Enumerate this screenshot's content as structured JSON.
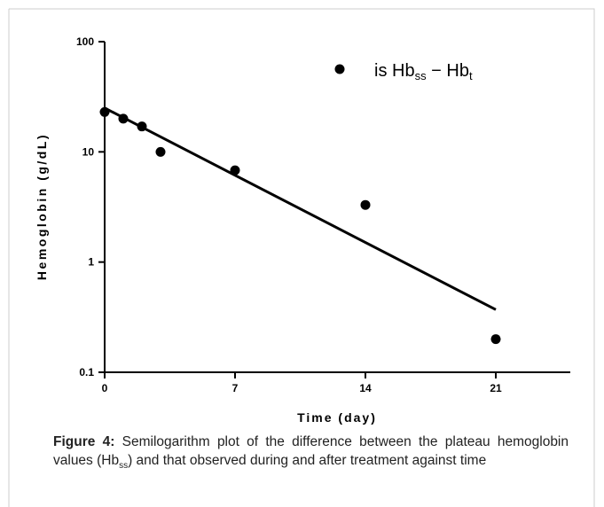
{
  "chart_data": {
    "type": "scatter",
    "ylabel": "Hemoglobin (g/dL)",
    "xlabel": "Time (day)",
    "xlim": [
      0,
      25
    ],
    "xticks": [
      0,
      7,
      14,
      21
    ],
    "ylim": [
      0.1,
      100
    ],
    "yticks": [
      100,
      10,
      1,
      0.1
    ],
    "log_y": true,
    "legend_label": [
      "is Hb",
      "ss",
      " − Hb",
      "t"
    ],
    "series": [
      {
        "color": "#000000",
        "x": [
          0,
          1,
          2,
          3,
          7,
          14,
          21
        ],
        "values": [
          23,
          20,
          17,
          10,
          6.8,
          3.3,
          0.2
        ]
      }
    ],
    "fit": {
      "color": "#000000",
      "x": [
        0,
        21
      ],
      "values": [
        25,
        0.37
      ]
    }
  },
  "caption": {
    "label": "Figure 4:",
    "text": [
      "Semilogarithm plot of the difference between the plateau hemoglobin values (Hb",
      "ss",
      ") and that observed during and after treatment against time"
    ]
  }
}
